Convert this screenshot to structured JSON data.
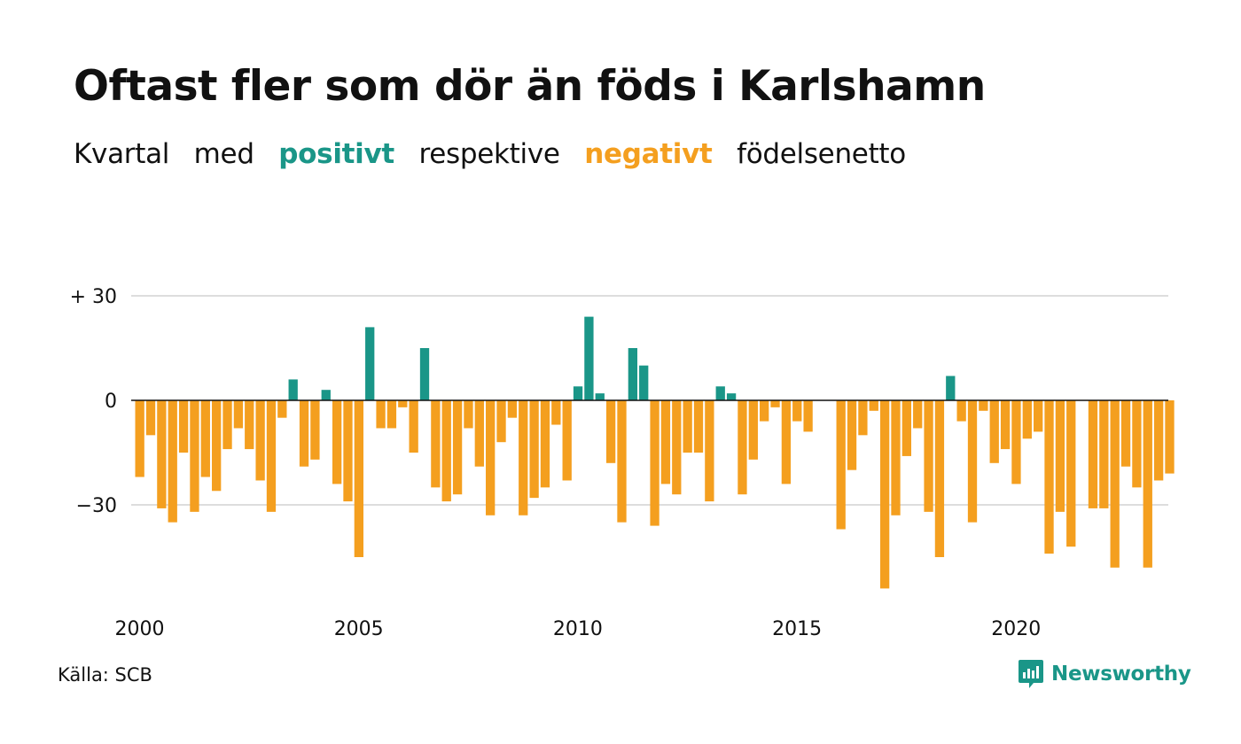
{
  "title": "Oftast fler som dör än föds i Karlshamn",
  "subtitle": {
    "part1": "Kvartal",
    "part2": "med",
    "positive": "positivt",
    "part3": "respektive",
    "negative": "negativt",
    "part4": "födelsenetto"
  },
  "colors": {
    "positive": "#1a9688",
    "negative": "#f49f1f",
    "grid": "#dddddd",
    "zero": "#111111"
  },
  "source": "Källa: SCB",
  "brand": {
    "name": "Newsworthy",
    "icon": "newsworthy-logo-icon"
  },
  "chart_data": {
    "type": "bar",
    "ylim": [
      -57,
      35
    ],
    "yticks": [
      30,
      0,
      -30
    ],
    "ytick_labels": [
      "+ 30",
      "0",
      "−30"
    ],
    "xticks": [
      2000,
      2005,
      2010,
      2015,
      2020
    ],
    "xtick_labels": [
      "2000",
      "2005",
      "2010",
      "2015",
      "2020"
    ],
    "categories": [
      "2000Q1",
      "2000Q2",
      "2000Q3",
      "2000Q4",
      "2001Q1",
      "2001Q2",
      "2001Q3",
      "2001Q4",
      "2002Q1",
      "2002Q2",
      "2002Q3",
      "2002Q4",
      "2003Q1",
      "2003Q2",
      "2003Q3",
      "2003Q4",
      "2004Q1",
      "2004Q2",
      "2004Q3",
      "2004Q4",
      "2005Q1",
      "2005Q2",
      "2005Q3",
      "2005Q4",
      "2006Q1",
      "2006Q2",
      "2006Q3",
      "2006Q4",
      "2007Q1",
      "2007Q2",
      "2007Q3",
      "2007Q4",
      "2008Q1",
      "2008Q2",
      "2008Q3",
      "2008Q4",
      "2009Q1",
      "2009Q2",
      "2009Q3",
      "2009Q4",
      "2010Q1",
      "2010Q2",
      "2010Q3",
      "2010Q4",
      "2011Q1",
      "2011Q2",
      "2011Q3",
      "2011Q4",
      "2012Q1",
      "2012Q2",
      "2012Q3",
      "2012Q4",
      "2013Q1",
      "2013Q2",
      "2013Q3",
      "2013Q4",
      "2014Q1",
      "2014Q2",
      "2014Q3",
      "2014Q4",
      "2015Q1",
      "2015Q2",
      "2015Q3",
      "2015Q4",
      "2016Q1",
      "2016Q2",
      "2016Q3",
      "2016Q4",
      "2017Q1",
      "2017Q2",
      "2017Q3",
      "2017Q4",
      "2018Q1",
      "2018Q2",
      "2018Q3",
      "2018Q4",
      "2019Q1",
      "2019Q2",
      "2019Q3",
      "2019Q4",
      "2020Q1",
      "2020Q2",
      "2020Q3",
      "2020Q4",
      "2021Q1",
      "2021Q2",
      "2021Q3",
      "2021Q4",
      "2022Q1",
      "2022Q2",
      "2022Q3",
      "2022Q4",
      "2023Q1",
      "2023Q2",
      "2023Q3",
      "2023Q4"
    ],
    "values": [
      -22,
      -10,
      -31,
      -35,
      -15,
      -32,
      -22,
      -26,
      -14,
      -8,
      -14,
      -23,
      -32,
      -5,
      6,
      -19,
      -17,
      3,
      -24,
      -29,
      -45,
      21,
      -8,
      -8,
      -2,
      -15,
      15,
      -25,
      -29,
      -27,
      -8,
      -19,
      -33,
      -12,
      -5,
      -33,
      -28,
      -25,
      -7,
      -23,
      4,
      24,
      2,
      -18,
      -35,
      15,
      10,
      -36,
      -24,
      -27,
      -15,
      -15,
      -29,
      4,
      2,
      -27,
      -17,
      -6,
      -2,
      -24,
      -6,
      -9,
      0,
      0,
      -37,
      -20,
      -10,
      -3,
      -54,
      -33,
      -16,
      -8,
      -32,
      -45,
      7,
      -6,
      -35,
      -3,
      -18,
      -14,
      -24,
      -11,
      -9,
      -44,
      -32,
      -42,
      0,
      -31,
      -31,
      -48,
      -19,
      -25,
      -48,
      -23,
      -21,
      0
    ]
  }
}
